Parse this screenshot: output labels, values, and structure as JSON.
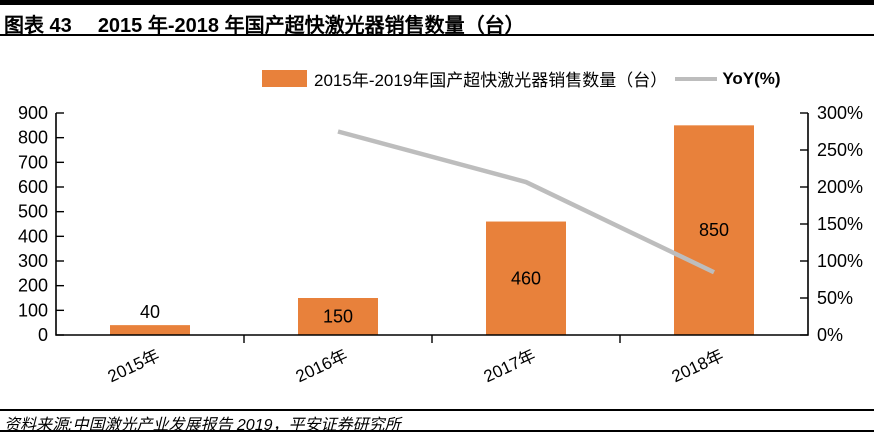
{
  "header": {
    "tag": "图表 43",
    "title": "2015 年-2018 年国产超快激光器销售数量（台）"
  },
  "legend": {
    "bars_label": "2015年-2019年国产超快激光器销售数量（台）",
    "line_label": "YoY(%)"
  },
  "footer": {
    "source": "资料来源:中国激光产业发展报告 2019，平安证券研究所"
  },
  "colors": {
    "bar": "#E8813B",
    "line": "#BDBDBD",
    "axis": "#000000",
    "text": "#000000"
  },
  "chart_data": {
    "type": "bar",
    "categories": [
      "2015年",
      "2016年",
      "2017年",
      "2018年"
    ],
    "series": [
      {
        "name": "2015年-2019年国产超快激光器销售数量（台）",
        "type": "bar",
        "axis": "left",
        "values": [
          40,
          150,
          460,
          850
        ]
      },
      {
        "name": "YoY(%)",
        "type": "line",
        "axis": "right",
        "values": [
          null,
          275,
          206.7,
          84.8
        ]
      }
    ],
    "data_labels": [
      "40",
      "150",
      "460",
      "850"
    ],
    "left_axis": {
      "min": 0,
      "max": 900,
      "step": 100,
      "ticks": [
        "0",
        "100",
        "200",
        "300",
        "400",
        "500",
        "600",
        "700",
        "800",
        "900"
      ]
    },
    "right_axis": {
      "min": 0,
      "max": 300,
      "step": 50,
      "ticks": [
        "0%",
        "50%",
        "100%",
        "150%",
        "200%",
        "250%",
        "300%"
      ]
    },
    "grid": false,
    "legend_position": "top"
  }
}
